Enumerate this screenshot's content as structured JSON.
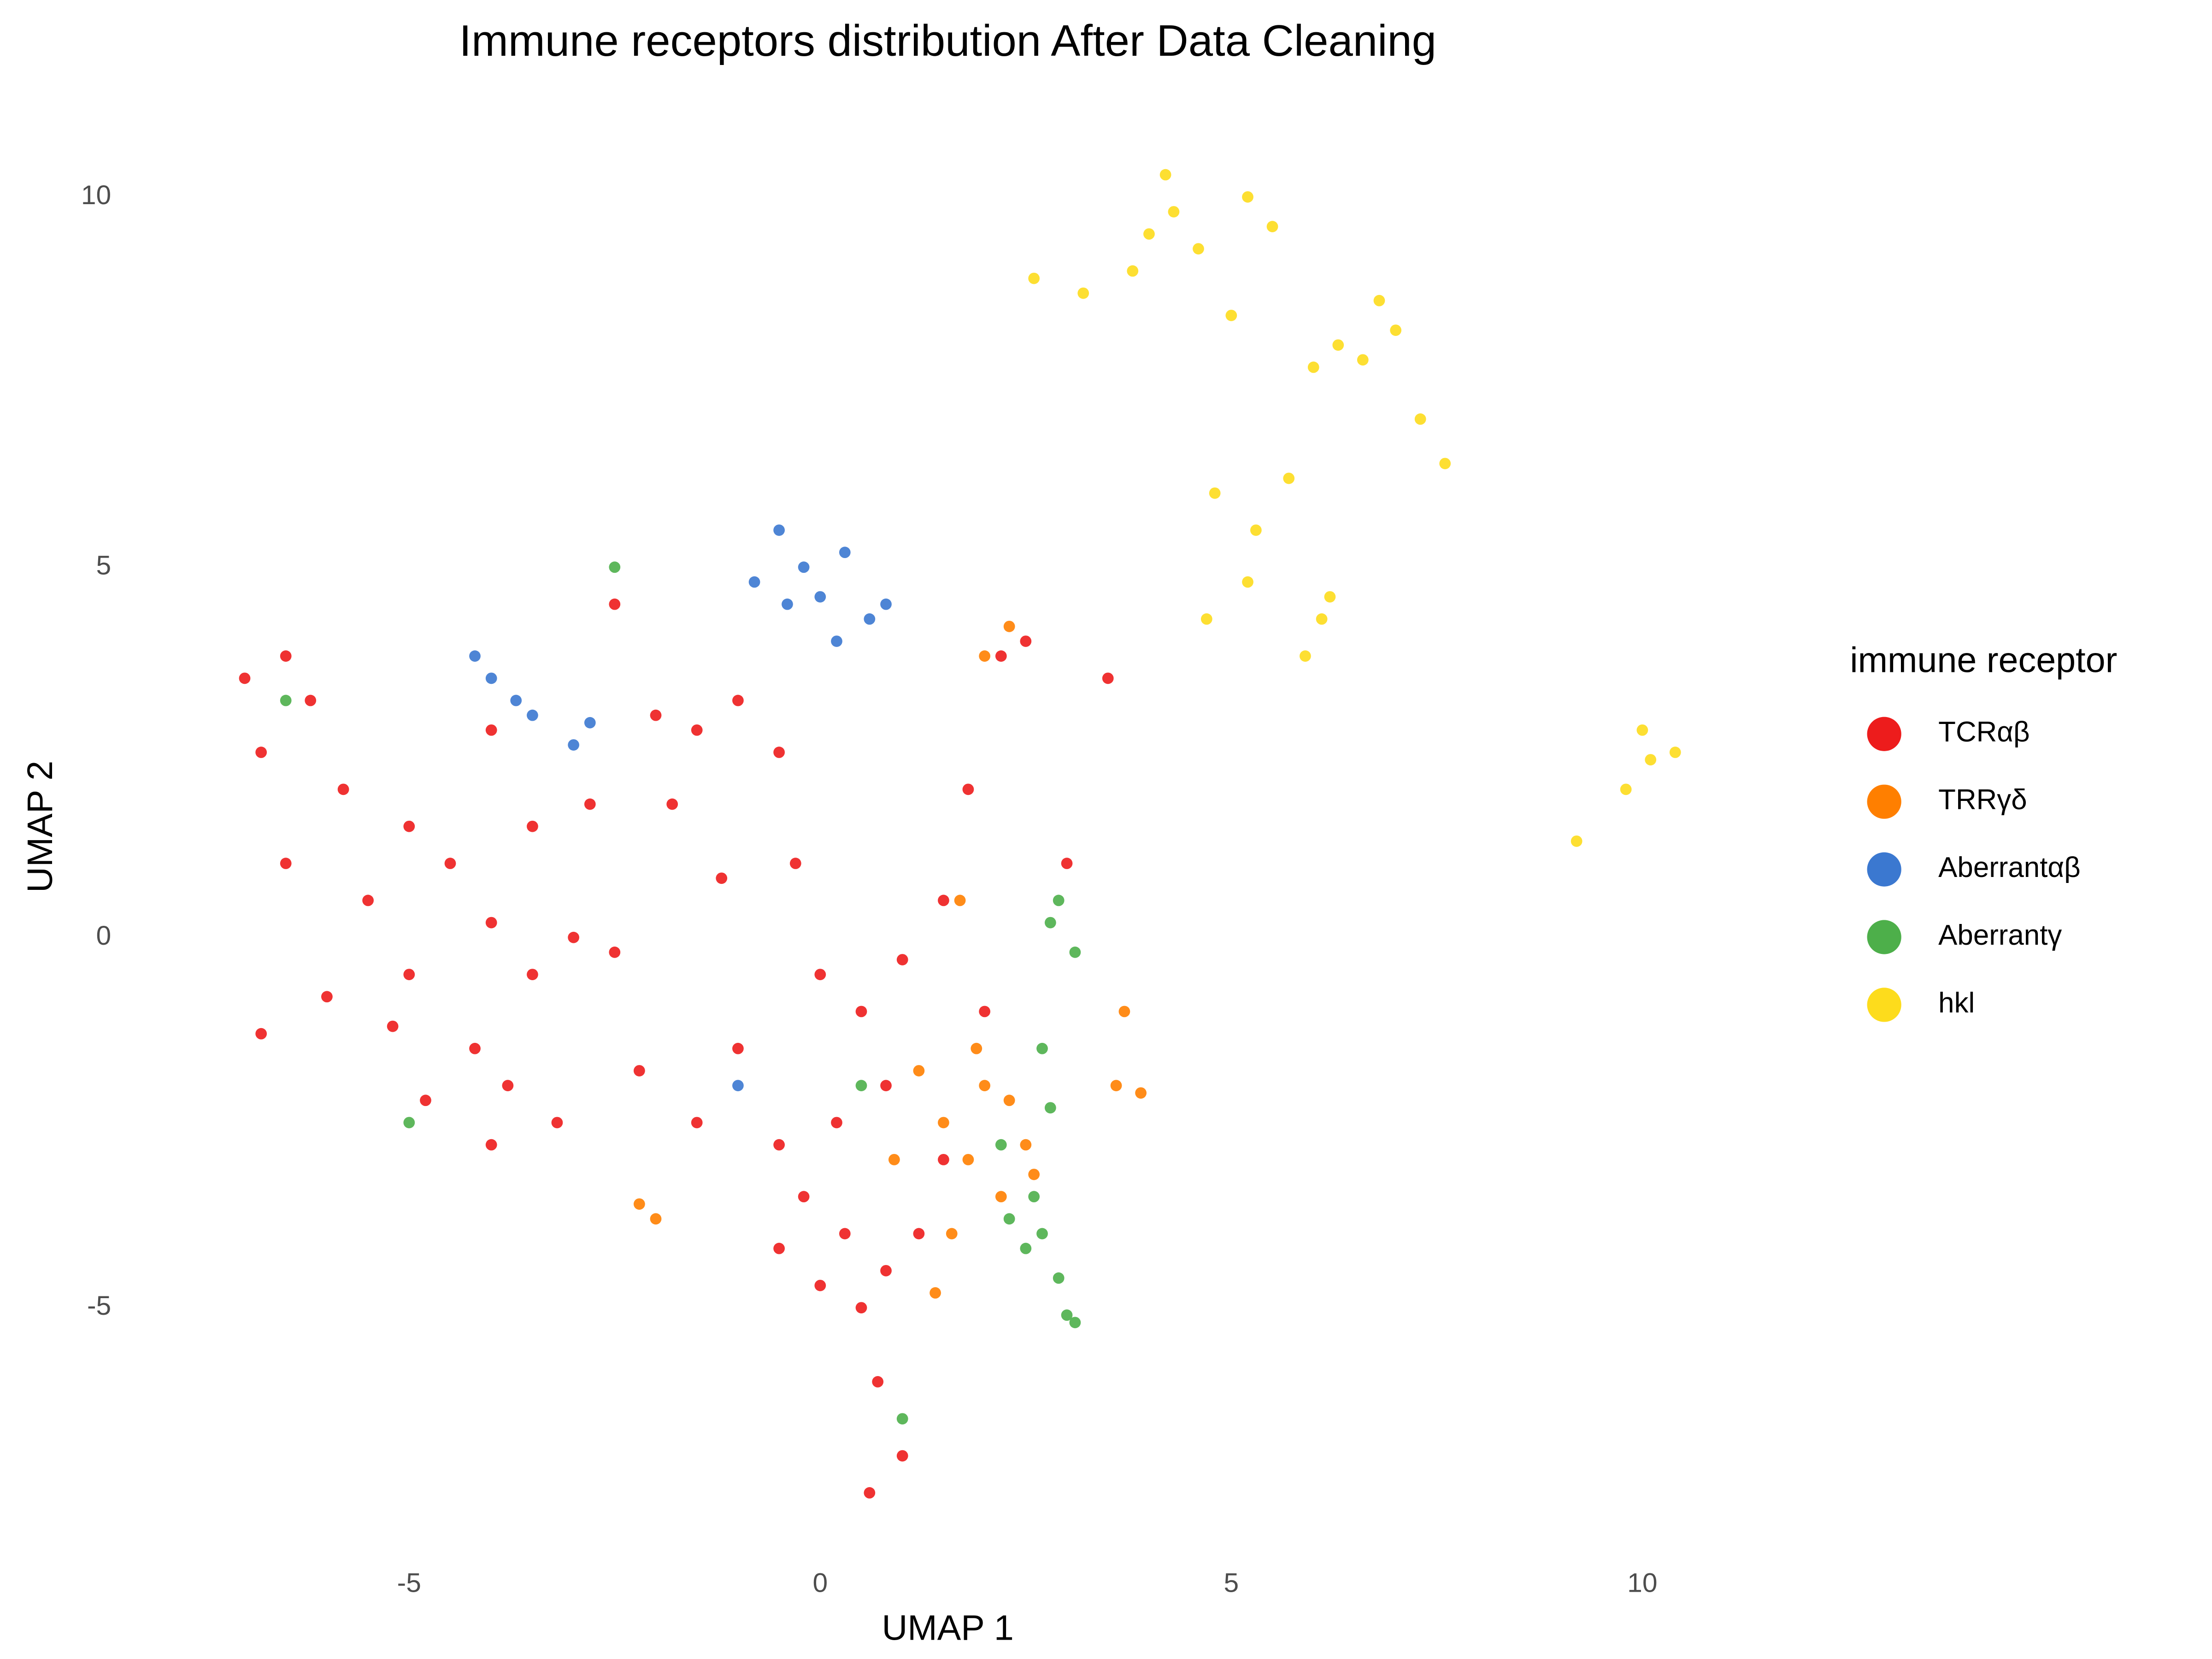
{
  "chart_data": {
    "type": "scatter",
    "title": "Immune receptors distribution After Data Cleaning",
    "x_label": "UMAP 1",
    "y_label": "UMAP 2",
    "legend_title": "immune receptor",
    "legend": "right",
    "xlim": [
      -8,
      11
    ],
    "ylim": [
      -7.8,
      10.6
    ],
    "xticks": [
      -5,
      0,
      5,
      10
    ],
    "yticks": [
      -5,
      0,
      5,
      10
    ],
    "grid": false,
    "series": [
      {
        "name": "TCRαβ",
        "color": "#ed1c1c",
        "x": [
          -7,
          -6.5,
          -6.2,
          -6.8,
          -5.8,
          -6.5,
          -5.5,
          -5,
          -4.5,
          -4,
          -3.5,
          -3,
          -4.2,
          -3.8,
          -5.2,
          -6,
          -6.8,
          -4.8,
          -4,
          -3.2,
          -2.5,
          -2,
          -1.5,
          -1,
          -0.5,
          -1.8,
          -1.2,
          -0.3,
          0,
          0.5,
          1,
          1.5,
          0.8,
          0.2,
          -0.5,
          -1,
          -0.2,
          0.3,
          0.8,
          1.2,
          0.5,
          0,
          -0.5,
          0.7,
          1,
          0.6,
          1.5,
          2,
          2.2,
          2.5,
          3,
          3.5,
          1.8,
          -2.5,
          -2.2,
          -1.5,
          -4,
          -5,
          -3.5,
          -2.8
        ],
        "y": [
          3.5,
          3.8,
          3.2,
          2.5,
          2,
          1,
          0.5,
          1.5,
          1,
          0.2,
          -0.5,
          0,
          -1.5,
          -2,
          -1.2,
          -0.8,
          -1.3,
          -2.2,
          -2.8,
          -2.5,
          4.5,
          3,
          2.8,
          3.2,
          2.5,
          1.8,
          0.8,
          1,
          -0.5,
          -1,
          -0.3,
          0.5,
          -2,
          -2.5,
          -2.8,
          -1.5,
          -3.5,
          -4,
          -4.5,
          -4,
          -5,
          -4.7,
          -4.2,
          -6,
          -7,
          -7.5,
          -3,
          -1,
          3.8,
          4,
          1,
          3.5,
          2,
          -0.2,
          -1.8,
          -2.5,
          2.8,
          -0.5,
          1.5,
          1.8
        ]
      },
      {
        "name": "TRRγδ",
        "color": "#ff7f00",
        "x": [
          1.2,
          1.5,
          1.8,
          2,
          2.2,
          2.5,
          1.6,
          1.9,
          2.3,
          3.6,
          3.9,
          3.7,
          2,
          2.3,
          -2,
          -2.2,
          1.4,
          2.6,
          1.7,
          0.9
        ],
        "y": [
          -1.8,
          -2.5,
          -3,
          -2,
          -3.5,
          -2.8,
          -4,
          -1.5,
          -2.2,
          -2,
          -2.1,
          -1,
          3.8,
          4.2,
          -3.8,
          -3.6,
          -4.8,
          -3.2,
          0.5,
          -3
        ]
      },
      {
        "name": "Aberrantαβ",
        "color": "#3b78d0",
        "x": [
          -0.5,
          -0.2,
          0,
          0.3,
          0.6,
          -0.8,
          0.2,
          -0.4,
          -4.2,
          -4,
          -3.7,
          -3.5,
          -2.8,
          -3,
          -1,
          0.8
        ],
        "y": [
          5.5,
          5,
          4.6,
          5.2,
          4.3,
          4.8,
          4,
          4.5,
          3.8,
          3.5,
          3.2,
          3,
          2.9,
          2.6,
          -2,
          4.5
        ]
      },
      {
        "name": "Aberrantγ",
        "color": "#4daf4a",
        "x": [
          2.3,
          2.5,
          2.7,
          2.9,
          2.6,
          3,
          3.1,
          2.8,
          2.2,
          2.9,
          2.8,
          3.1,
          -6.5,
          -5,
          -2.5,
          1,
          0.5,
          2.7
        ],
        "y": [
          -3.8,
          -4.2,
          -4,
          -4.6,
          -3.5,
          -5.1,
          -5.2,
          -2.3,
          -2.8,
          0.5,
          0.2,
          -0.2,
          3.2,
          -2.5,
          5,
          -6.5,
          -2,
          -1.5
        ]
      },
      {
        "name": "hkl",
        "color": "#fddc1c",
        "x": [
          4,
          4.3,
          4.6,
          4.2,
          3.8,
          5.2,
          5.5,
          5,
          6.3,
          6.6,
          7,
          6.8,
          6,
          7.3,
          7.6,
          2.6,
          3.2,
          4.8,
          5.3,
          5.7,
          5.2,
          6.1,
          6.2,
          5.9,
          4.7,
          10,
          10.1,
          9.8,
          9.2,
          10.4
        ],
        "y": [
          9.5,
          9.8,
          9.3,
          10.3,
          9,
          10,
          9.6,
          8.4,
          8,
          7.8,
          8.2,
          8.6,
          7.7,
          7,
          6.4,
          8.9,
          8.7,
          6,
          5.5,
          6.2,
          4.8,
          4.3,
          4.6,
          3.8,
          4.3,
          2.8,
          2.4,
          2,
          1.3,
          2.5
        ]
      }
    ]
  }
}
